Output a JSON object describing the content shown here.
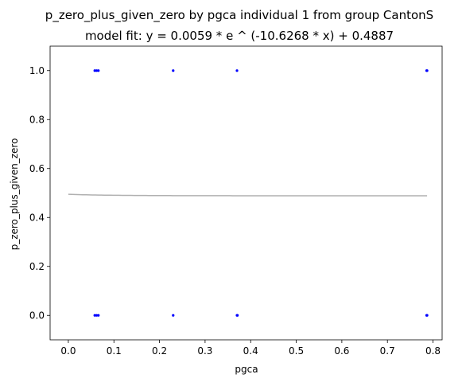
{
  "chart_data": {
    "type": "scatter",
    "title": "p_zero_plus_given_zero by pgca individual 1 from group CantonS",
    "subtitle": "model fit: y = 0.0059 * e ^ (-10.6268 * x) + 0.4887",
    "xlabel": "pgca",
    "ylabel": "p_zero_plus_given_zero",
    "xlim": [
      -0.04,
      0.82
    ],
    "ylim": [
      -0.1,
      1.1
    ],
    "xticks": [
      0.0,
      0.1,
      0.2,
      0.3,
      0.4,
      0.5,
      0.6,
      0.7,
      0.8
    ],
    "xtick_labels": [
      "0.0",
      "0.1",
      "0.2",
      "0.3",
      "0.4",
      "0.5",
      "0.6",
      "0.7",
      "0.8"
    ],
    "yticks": [
      0.0,
      0.2,
      0.4,
      0.6,
      0.8,
      1.0
    ],
    "ytick_labels": [
      "0.0",
      "0.2",
      "0.4",
      "0.6",
      "0.8",
      "1.0"
    ],
    "grid": false,
    "points": [
      {
        "x": 0.058,
        "y": 1.0
      },
      {
        "x": 0.062,
        "y": 1.0
      },
      {
        "x": 0.066,
        "y": 1.0
      },
      {
        "x": 0.23,
        "y": 1.0
      },
      {
        "x": 0.37,
        "y": 1.0
      },
      {
        "x": 0.786,
        "y": 1.0
      },
      {
        "x": 0.787,
        "y": 1.0
      },
      {
        "x": 0.058,
        "y": 0.0
      },
      {
        "x": 0.062,
        "y": 0.0
      },
      {
        "x": 0.066,
        "y": 0.0
      },
      {
        "x": 0.23,
        "y": 0.0
      },
      {
        "x": 0.37,
        "y": 0.0
      },
      {
        "x": 0.371,
        "y": 0.0
      },
      {
        "x": 0.786,
        "y": 0.0
      },
      {
        "x": 0.787,
        "y": 0.0
      }
    ],
    "point_color": "#0000ff",
    "fit": {
      "a": 0.0059,
      "b": -10.6268,
      "c": 0.4887,
      "x_range": [
        0.0,
        0.787
      ]
    },
    "fit_color": "#b0b0b0"
  }
}
